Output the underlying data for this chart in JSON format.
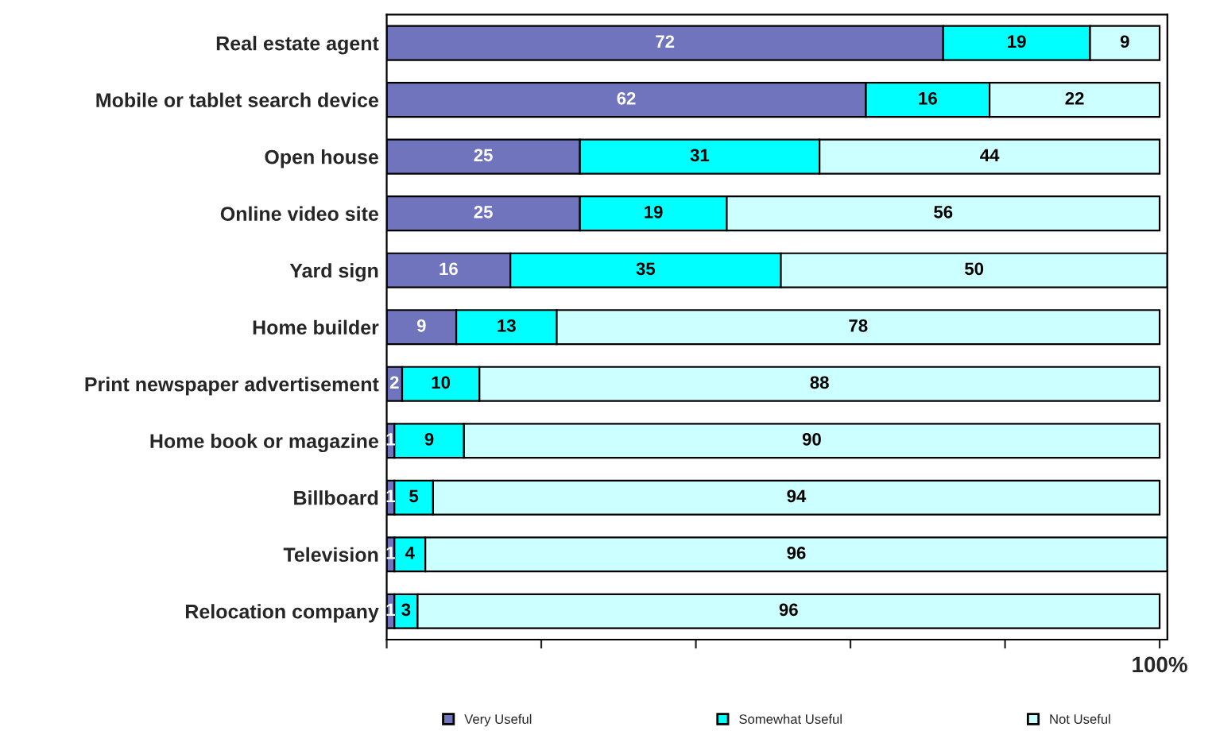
{
  "chart_data": {
    "type": "bar",
    "orientation": "horizontal",
    "stacked": true,
    "data_labels": true,
    "grid": false,
    "legend": "bottom",
    "categories": [
      "Real estate agent",
      "Mobile or tablet search device",
      "Open house",
      "Online video site",
      "Yard sign",
      "Home builder",
      "Print newspaper advertisement",
      "Home book or magazine",
      "Billboard",
      "Television",
      "Relocation company"
    ],
    "series": [
      {
        "name": "Very Useful",
        "color": "#6f74bd",
        "values": [
          72,
          62,
          25,
          25,
          16,
          9,
          2,
          1,
          1,
          1,
          1
        ]
      },
      {
        "name": "Somewhat Useful",
        "color": "#00ffff",
        "values": [
          19,
          16,
          31,
          19,
          35,
          13,
          10,
          9,
          5,
          4,
          3
        ]
      },
      {
        "name": "Not Useful",
        "color": "#ccffff",
        "values": [
          9,
          22,
          44,
          56,
          50,
          78,
          88,
          90,
          94,
          96,
          96
        ]
      }
    ],
    "xlim": [
      0,
      101
    ],
    "xticks": [
      {
        "value": 0,
        "label": null
      },
      {
        "value": 20,
        "label": null
      },
      {
        "value": 40,
        "label": null
      },
      {
        "value": 60,
        "label": null
      },
      {
        "value": 80,
        "label": null
      },
      {
        "value": 100,
        "label": "100%"
      }
    ]
  }
}
